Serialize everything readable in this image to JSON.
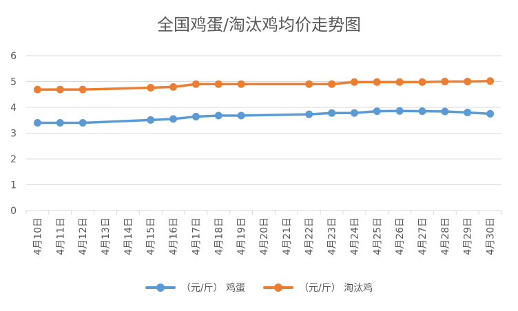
{
  "chart_data": {
    "type": "line",
    "title": "全国鸡蛋/淘汰鸡均价走势图",
    "categories": [
      "4月10日",
      "4月11日",
      "4月12日",
      "4月13日",
      "4月14日",
      "4月15日",
      "4月16日",
      "4月17日",
      "4月18日",
      "4月19日",
      "4月20日",
      "4月21日",
      "4月22日",
      "4月23日",
      "4月24日",
      "4月25日",
      "4月26日",
      "4月27日",
      "4月28日",
      "4月29日",
      "4月30日"
    ],
    "ylim": [
      0,
      6
    ],
    "yticks": [
      "0",
      "1",
      "2",
      "3",
      "4",
      "5",
      "6"
    ],
    "grid": true,
    "legend_position": "bottom",
    "series": [
      {
        "name": "（元/斤） 鸡蛋",
        "color": "#5B9BD5",
        "values": [
          3.4,
          3.4,
          3.4,
          null,
          null,
          3.51,
          3.55,
          3.64,
          3.68,
          3.68,
          null,
          null,
          3.73,
          3.78,
          3.78,
          3.85,
          3.86,
          3.85,
          3.84,
          3.8,
          3.75
        ]
      },
      {
        "name": "（元/斤） 淘汰鸡",
        "color": "#ED7D31",
        "values": [
          4.69,
          4.69,
          4.69,
          null,
          null,
          4.76,
          4.79,
          4.9,
          4.9,
          4.9,
          null,
          null,
          4.9,
          4.9,
          4.98,
          4.98,
          4.98,
          4.98,
          5.0,
          5.0,
          5.02
        ]
      }
    ]
  }
}
